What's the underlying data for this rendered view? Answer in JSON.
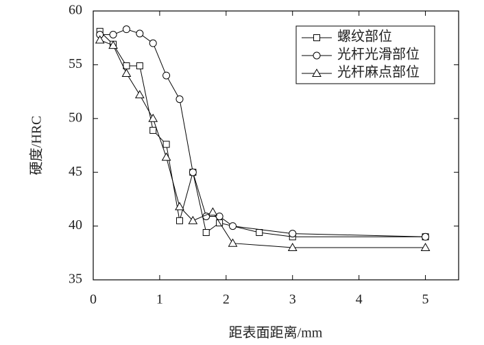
{
  "chart_data": {
    "type": "line",
    "x_label": "距表面距离/mm",
    "y_label": "硬度/HRC",
    "xlim": [
      0,
      5.5
    ],
    "ylim": [
      35,
      60
    ],
    "xticks": [
      0,
      1,
      2,
      3,
      4,
      5
    ],
    "yticks": [
      35,
      40,
      45,
      50,
      55,
      60
    ],
    "series": [
      {
        "name": "螺纹部位",
        "color": "#000000",
        "marker": "square",
        "x": [
          0.1,
          0.3,
          0.5,
          0.7,
          0.9,
          1.1,
          1.3,
          1.5,
          1.7,
          1.9,
          2.5,
          3,
          5
        ],
        "values": [
          58.1,
          56.9,
          54.9,
          54.9,
          48.9,
          47.6,
          40.5,
          45.0,
          39.4,
          40.3,
          39.4,
          39.0,
          39.0
        ]
      },
      {
        "name": "光杆光滑部位",
        "color": "#000000",
        "marker": "circle",
        "x": [
          0.1,
          0.3,
          0.5,
          0.7,
          0.9,
          1.1,
          1.3,
          1.5,
          1.7,
          1.9,
          2.1,
          3,
          5
        ],
        "values": [
          57.8,
          57.8,
          58.3,
          57.9,
          57.0,
          54.0,
          51.8,
          45.0,
          40.9,
          40.9,
          40.0,
          39.3,
          39.0
        ]
      },
      {
        "name": "光杆麻点部位",
        "color": "#000000",
        "marker": "triangle",
        "x": [
          0.1,
          0.3,
          0.5,
          0.7,
          0.9,
          1.1,
          1.3,
          1.5,
          1.8,
          2.1,
          3,
          5
        ],
        "values": [
          57.3,
          56.8,
          54.2,
          52.2,
          50.0,
          46.4,
          41.8,
          40.5,
          41.3,
          38.4,
          38.0,
          38.0
        ]
      }
    ]
  }
}
